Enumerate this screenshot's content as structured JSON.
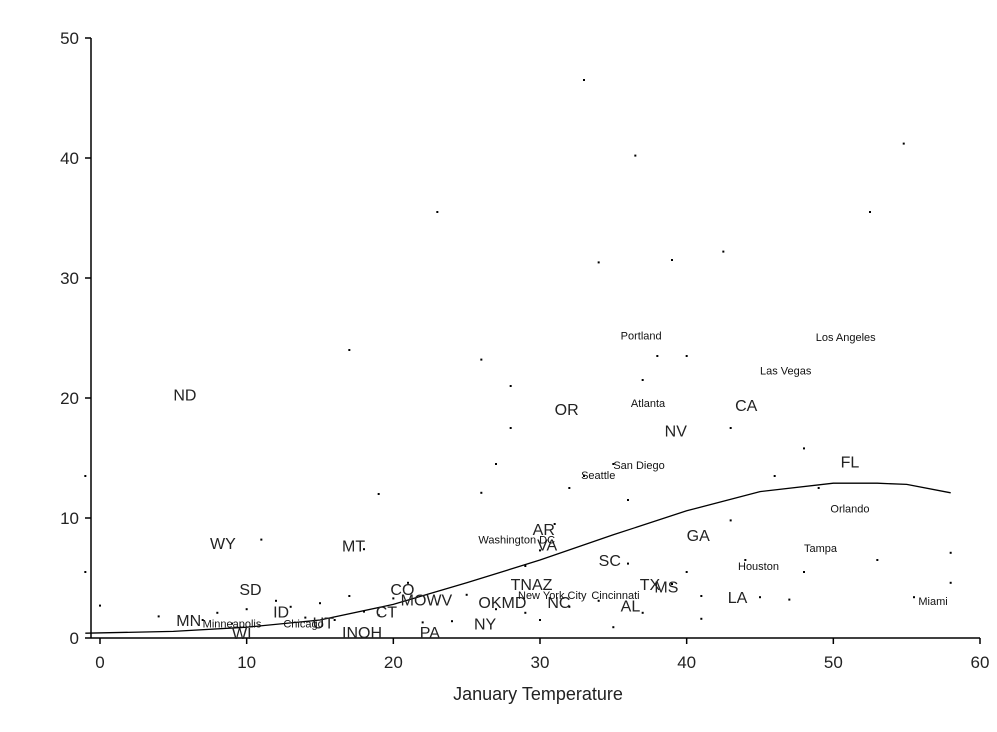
{
  "chart_data": {
    "type": "scatter",
    "title": "",
    "xlabel": "January Temperature",
    "ylabel": "",
    "xlim": [
      0,
      60
    ],
    "ylim": [
      0,
      50
    ],
    "xticks": [
      0,
      10,
      20,
      30,
      40,
      50,
      60
    ],
    "yticks": [
      0,
      10,
      20,
      30,
      40,
      50
    ],
    "grid": false,
    "legend": "none",
    "points": [
      [
        -1,
        13.5
      ],
      [
        -1,
        5.5
      ],
      [
        0,
        2.7
      ],
      [
        4,
        1.8
      ],
      [
        7,
        1.5
      ],
      [
        8,
        2.1
      ],
      [
        9,
        1.2
      ],
      [
        10,
        2.4
      ],
      [
        11,
        8.2
      ],
      [
        12,
        3.1
      ],
      [
        13,
        2.6
      ],
      [
        14,
        1.7
      ],
      [
        15,
        2.9
      ],
      [
        16,
        1.5
      ],
      [
        17,
        24
      ],
      [
        17,
        3.5
      ],
      [
        18,
        2.2
      ],
      [
        18,
        7.4
      ],
      [
        19,
        12
      ],
      [
        19,
        1.9
      ],
      [
        20,
        3.3
      ],
      [
        21,
        4.6
      ],
      [
        22,
        1.3
      ],
      [
        23,
        35.5
      ],
      [
        23,
        2.8
      ],
      [
        24,
        1.4
      ],
      [
        25,
        3.6
      ],
      [
        26,
        23.2
      ],
      [
        26,
        12.1
      ],
      [
        27,
        14.5
      ],
      [
        27,
        2.4
      ],
      [
        28,
        17.5
      ],
      [
        28,
        21
      ],
      [
        29,
        6
      ],
      [
        29,
        2.1
      ],
      [
        30,
        7.3
      ],
      [
        30,
        1.5
      ],
      [
        31,
        9.5
      ],
      [
        32,
        12.5
      ],
      [
        32,
        2.6
      ],
      [
        33,
        46.5
      ],
      [
        33,
        13.5
      ],
      [
        34,
        31.3
      ],
      [
        34,
        3.1
      ],
      [
        35,
        14.5
      ],
      [
        35,
        0.9
      ],
      [
        36,
        11.5
      ],
      [
        36,
        6.2
      ],
      [
        36.5,
        40.2
      ],
      [
        37,
        21.5
      ],
      [
        37,
        2.1
      ],
      [
        38,
        23.5
      ],
      [
        39,
        31.5
      ],
      [
        39,
        4.5
      ],
      [
        40,
        23.5
      ],
      [
        40,
        5.5
      ],
      [
        41,
        3.5
      ],
      [
        41,
        1.6
      ],
      [
        42.5,
        32.2
      ],
      [
        43,
        17.5
      ],
      [
        43,
        9.8
      ],
      [
        44,
        6.5
      ],
      [
        45,
        3.4
      ],
      [
        46,
        13.5
      ],
      [
        47,
        3.2
      ],
      [
        48,
        15.8
      ],
      [
        48,
        5.5
      ],
      [
        49,
        12.5
      ],
      [
        52.5,
        35.5
      ],
      [
        53,
        6.5
      ],
      [
        54.8,
        41.2
      ],
      [
        55.5,
        3.4
      ],
      [
        58,
        7.1
      ],
      [
        58,
        4.6
      ]
    ],
    "state_labels": [
      {
        "text": "ND",
        "x": 5,
        "y": 20.3
      },
      {
        "text": "WY",
        "x": 7.5,
        "y": 7.9
      },
      {
        "text": "SD",
        "x": 9.5,
        "y": 4.1
      },
      {
        "text": "MN",
        "x": 5.2,
        "y": 1.5
      },
      {
        "text": "WI",
        "x": 9,
        "y": 0.4
      },
      {
        "text": "ID",
        "x": 11.8,
        "y": 2.2
      },
      {
        "text": "MT",
        "x": 16.5,
        "y": 7.7
      },
      {
        "text": "CO",
        "x": 19.8,
        "y": 4.1
      },
      {
        "text": "MOWV",
        "x": 20.5,
        "y": 3.2
      },
      {
        "text": "INOH",
        "x": 16.5,
        "y": 0.5
      },
      {
        "text": "PA",
        "x": 21.8,
        "y": 0.5
      },
      {
        "text": "NY",
        "x": 25.5,
        "y": 1.2
      },
      {
        "text": "OR",
        "x": 31,
        "y": 19.1
      },
      {
        "text": "CA",
        "x": 43.3,
        "y": 19.4
      },
      {
        "text": "NV",
        "x": 38.5,
        "y": 17.3
      },
      {
        "text": "FL",
        "x": 50.5,
        "y": 14.7
      },
      {
        "text": "GA",
        "x": 40,
        "y": 8.6
      },
      {
        "text": "AR",
        "x": 29.5,
        "y": 9.1
      },
      {
        "text": "VA",
        "x": 29.8,
        "y": 7.8
      },
      {
        "text": "SC",
        "x": 34,
        "y": 6.5
      },
      {
        "text": "TNAZ",
        "x": 28,
        "y": 4.5
      },
      {
        "text": "TX",
        "x": 36.8,
        "y": 4.5
      },
      {
        "text": "MS",
        "x": 37.8,
        "y": 4.3
      },
      {
        "text": "OKMD",
        "x": 25.8,
        "y": 3.0
      },
      {
        "text": "NC",
        "x": 30.5,
        "y": 3.0
      },
      {
        "text": "AL",
        "x": 35.5,
        "y": 2.7
      },
      {
        "text": "LA",
        "x": 42.8,
        "y": 3.4
      },
      {
        "text": "UT",
        "x": 14.5,
        "y": 1.3
      },
      {
        "text": "CT",
        "x": 18.8,
        "y": 2.2
      }
    ],
    "city_labels": [
      {
        "text": "Portland",
        "x": 35.5,
        "y": 25.2
      },
      {
        "text": "Los Angeles",
        "x": 48.8,
        "y": 25.1
      },
      {
        "text": "Las Vegas",
        "x": 45,
        "y": 22.3
      },
      {
        "text": "Atlanta",
        "x": 36.2,
        "y": 19.6
      },
      {
        "text": "San Diego",
        "x": 35,
        "y": 14.4
      },
      {
        "text": "Seattle",
        "x": 32.8,
        "y": 13.6
      },
      {
        "text": "Orlando",
        "x": 49.8,
        "y": 10.8
      },
      {
        "text": "Tampa",
        "x": 48,
        "y": 7.5
      },
      {
        "text": "Houston",
        "x": 43.5,
        "y": 6.0
      },
      {
        "text": "Washington DC",
        "x": 25.8,
        "y": 8.2
      },
      {
        "text": "New York City",
        "x": 28.5,
        "y": 3.6
      },
      {
        "text": "Cincinnati",
        "x": 33.5,
        "y": 3.6
      },
      {
        "text": "Miami",
        "x": 55.8,
        "y": 3.1
      },
      {
        "text": "Minneapolis",
        "x": 7,
        "y": 1.2
      },
      {
        "text": "Chicago",
        "x": 12.5,
        "y": 1.2
      }
    ],
    "fit_curve": [
      [
        -1,
        0.4
      ],
      [
        5,
        0.55
      ],
      [
        10,
        0.9
      ],
      [
        15,
        1.5
      ],
      [
        20,
        2.8
      ],
      [
        25,
        4.6
      ],
      [
        30,
        6.5
      ],
      [
        35,
        8.6
      ],
      [
        40,
        10.6
      ],
      [
        45,
        12.2
      ],
      [
        50,
        12.9
      ],
      [
        53,
        12.9
      ],
      [
        55,
        12.8
      ],
      [
        58,
        12.1
      ]
    ]
  }
}
